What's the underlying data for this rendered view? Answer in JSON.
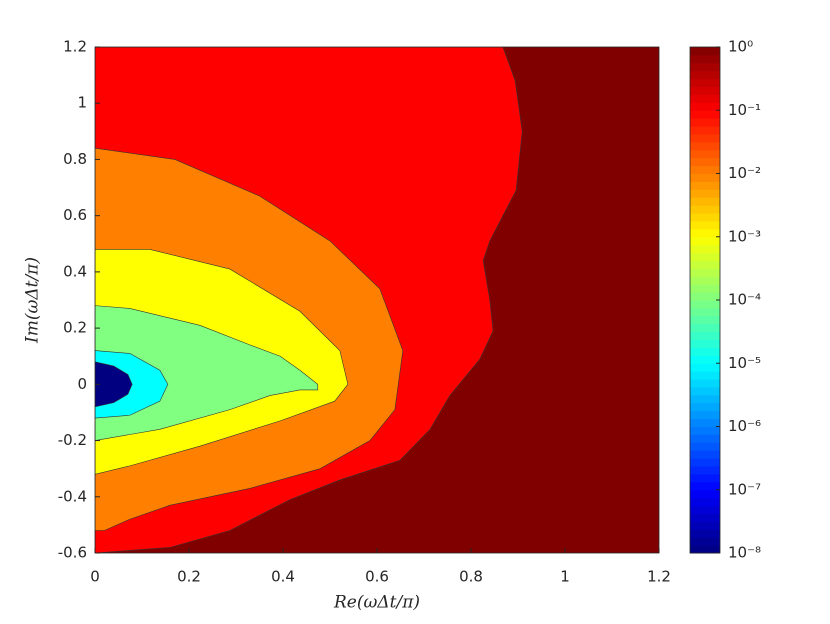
{
  "chart_data": {
    "type": "contour",
    "xlabel": "Re(ωΔt/π)",
    "ylabel": "Im(ωΔt/π)",
    "xlim": [
      0,
      1.2
    ],
    "ylim": [
      -0.6,
      1.2
    ],
    "xticks": [
      0,
      0.2,
      0.4,
      0.6,
      0.8,
      1,
      1.2
    ],
    "yticks": [
      -0.6,
      -0.4,
      -0.2,
      0,
      0.2,
      0.4,
      0.6,
      0.8,
      1,
      1.2
    ],
    "colormap": "jet",
    "colorbar_scale": "log",
    "clim": [
      1e-08,
      1
    ],
    "cticks": [
      {
        "value": 1e-08,
        "label": "10⁻⁸"
      },
      {
        "value": 1e-07,
        "label": "10⁻⁷"
      },
      {
        "value": 1e-06,
        "label": "10⁻⁶"
      },
      {
        "value": 1e-05,
        "label": "10⁻⁵"
      },
      {
        "value": 0.0001,
        "label": "10⁻⁴"
      },
      {
        "value": 0.001,
        "label": "10⁻³"
      },
      {
        "value": 0.01,
        "label": "10⁻²"
      },
      {
        "value": 0.1,
        "label": "10⁻¹"
      },
      {
        "value": 1,
        "label": "10⁰"
      }
    ],
    "contours": [
      {
        "level": 1,
        "x": [
          0,
          1.2,
          1.2,
          0
        ],
        "y": [
          1.2,
          1.2,
          -0.6,
          -0.6
        ]
      },
      {
        "level": 0.1,
        "x": [
          0,
          0.868,
          0.894,
          0.909,
          0.896,
          0.84,
          0.826,
          0.84,
          0.847,
          0.819,
          0.755,
          0.713,
          0.649,
          0.521,
          0.415,
          0.287,
          0.16,
          0
        ],
        "y": [
          1.2,
          1.2,
          1.08,
          0.9,
          0.69,
          0.51,
          0.44,
          0.3,
          0.19,
          0.09,
          -0.04,
          -0.16,
          -0.27,
          -0.34,
          -0.41,
          -0.52,
          -0.58,
          -0.6
        ]
      },
      {
        "level": 0.01,
        "x": [
          0,
          0.17,
          0.35,
          0.5,
          0.606,
          0.655,
          0.638,
          0.585,
          0.479,
          0.33,
          0.16,
          0.074,
          0.02,
          0
        ],
        "y": [
          0.84,
          0.8,
          0.67,
          0.51,
          0.34,
          0.12,
          -0.09,
          -0.2,
          -0.3,
          -0.37,
          -0.43,
          -0.48,
          -0.52,
          -0.52
        ]
      },
      {
        "level": 0.001,
        "x": [
          0,
          0.117,
          0.287,
          0.436,
          0.521,
          0.538,
          0.51,
          0.394,
          0.223,
          0.074,
          0
        ],
        "y": [
          0.48,
          0.48,
          0.41,
          0.26,
          0.12,
          0,
          -0.06,
          -0.13,
          -0.22,
          -0.29,
          -0.32
        ]
      },
      {
        "level": 0.0001,
        "x": [
          0,
          0.074,
          0.223,
          0.33,
          0.394,
          0.436,
          0.474,
          0.474,
          0.436,
          0.372,
          0.287,
          0.138,
          0
        ],
        "y": [
          0.28,
          0.27,
          0.21,
          0.14,
          0.1,
          0.05,
          0,
          -0.02,
          -0.02,
          -0.04,
          -0.09,
          -0.16,
          -0.2
        ]
      },
      {
        "level": 1e-05,
        "x": [
          0,
          0.074,
          0.138,
          0.155,
          0.138,
          0.074,
          0
        ],
        "y": [
          0.12,
          0.11,
          0.05,
          0,
          -0.06,
          -0.11,
          -0.12
        ]
      },
      {
        "level": 1e-08,
        "x": [
          0,
          0.04,
          0.07,
          0.079,
          0.07,
          0.04,
          0
        ],
        "y": [
          0.08,
          0.065,
          0.035,
          0,
          -0.035,
          -0.065,
          -0.08
        ]
      }
    ]
  }
}
